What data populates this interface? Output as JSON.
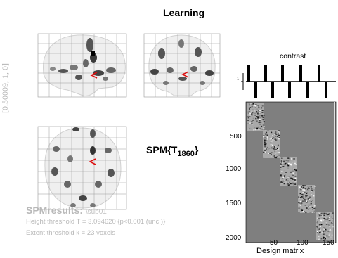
{
  "window": {
    "title": "Learning"
  },
  "coordinate_label": "[0.50009, 1, 0]",
  "stat_label": {
    "prefix": "SPM{T",
    "subscript": "1860",
    "suffix": "}"
  },
  "results": {
    "title": "SPMresults:",
    "subject": "\\sub01",
    "height_threshold": "Height threshold T = 3.094620  {p<0.001 (unc.)}",
    "extent_threshold": "Extent threshold k = 23 voxels"
  },
  "contrast_panel": {
    "label": "contrast",
    "num_columns": 150,
    "y_tick": "1"
  },
  "design_matrix": {
    "xlabel": "Design matrix",
    "y_ticks": [
      "500",
      "1000",
      "1500",
      "2000"
    ],
    "x_ticks": [
      "50",
      "100",
      "150"
    ],
    "colors": {
      "background": "#7f7f7f",
      "block": "#d8d8d8"
    }
  },
  "glass_brain": {
    "colors": {
      "background": "#efefef",
      "grid": "#9a9a9a",
      "blob": "#3a3a3a",
      "cursor": "#dd1111"
    }
  }
}
